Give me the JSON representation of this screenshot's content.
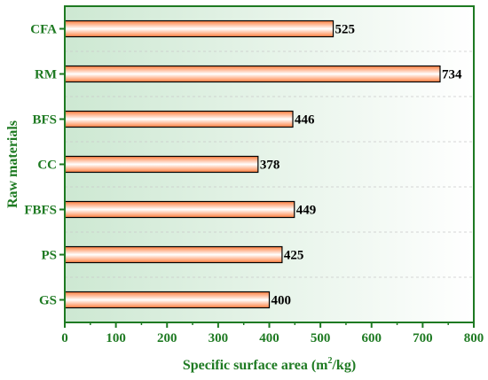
{
  "chart_data": {
    "type": "bar",
    "orientation": "horizontal",
    "categories": [
      "CFA",
      "RM",
      "BFS",
      "CC",
      "FBFS",
      "PS",
      "GS"
    ],
    "values": [
      525,
      734,
      446,
      378,
      449,
      425,
      400
    ],
    "value_labels": [
      "525",
      "734",
      "446",
      "378",
      "449",
      "425",
      "400"
    ],
    "xlabel_prefix": "Specific surface area (m",
    "xlabel_sup": "2",
    "xlabel_suffix": "/kg)",
    "ylabel": "Raw materials",
    "xlim": [
      0,
      800
    ],
    "xticks": [
      0,
      100,
      200,
      300,
      400,
      500,
      600,
      700,
      800
    ],
    "xtick_labels": [
      "0",
      "100",
      "200",
      "300",
      "400",
      "500",
      "600",
      "700",
      "800"
    ],
    "grid": "horizontal-dashed",
    "legend": "none",
    "colors": {
      "axis": "#1e7a22",
      "background_left": "#cde8d2",
      "background_right": "#ffffff",
      "bar_edge": "#ff7f3f",
      "bar_center": "#ffffff",
      "bar_outline": "#000000"
    }
  }
}
